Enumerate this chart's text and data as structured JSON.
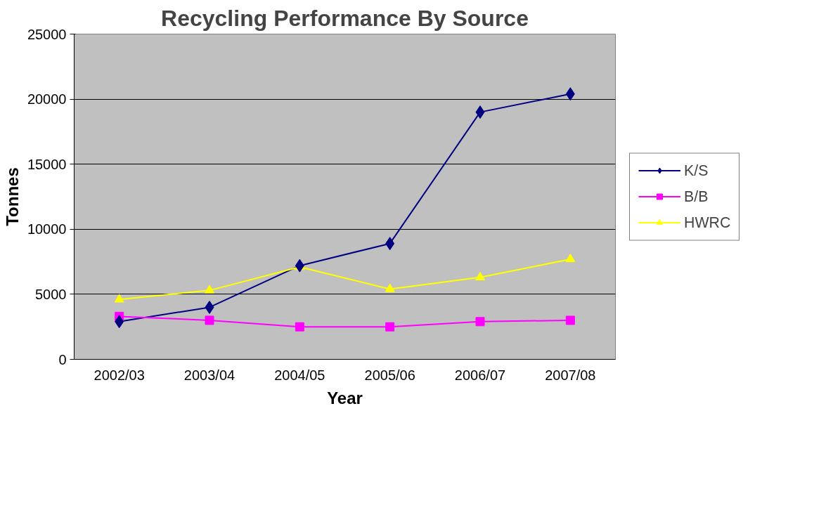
{
  "chart_data": {
    "type": "line",
    "title": "Recycling Performance By Source",
    "xlabel": "Year",
    "ylabel": "Tonnes",
    "categories": [
      "2002/03",
      "2003/04",
      "2004/05",
      "2005/06",
      "2006/07",
      "2007/08"
    ],
    "series": [
      {
        "name": "K/S",
        "color": "#000080",
        "marker": "diamond",
        "values": [
          2900,
          4000,
          7200,
          8900,
          19000,
          20400
        ]
      },
      {
        "name": "B/B",
        "color": "#ff00ff",
        "marker": "square",
        "values": [
          3300,
          3000,
          2500,
          2500,
          2900,
          3000
        ]
      },
      {
        "name": "HWRC",
        "color": "#ffff00",
        "marker": "triangle",
        "values": [
          4600,
          5300,
          7100,
          5400,
          6300,
          7700
        ]
      }
    ],
    "ylim": [
      0,
      25000
    ],
    "yticks": [
      0,
      5000,
      10000,
      15000,
      20000,
      25000
    ],
    "grid": "y",
    "legend": "right"
  }
}
